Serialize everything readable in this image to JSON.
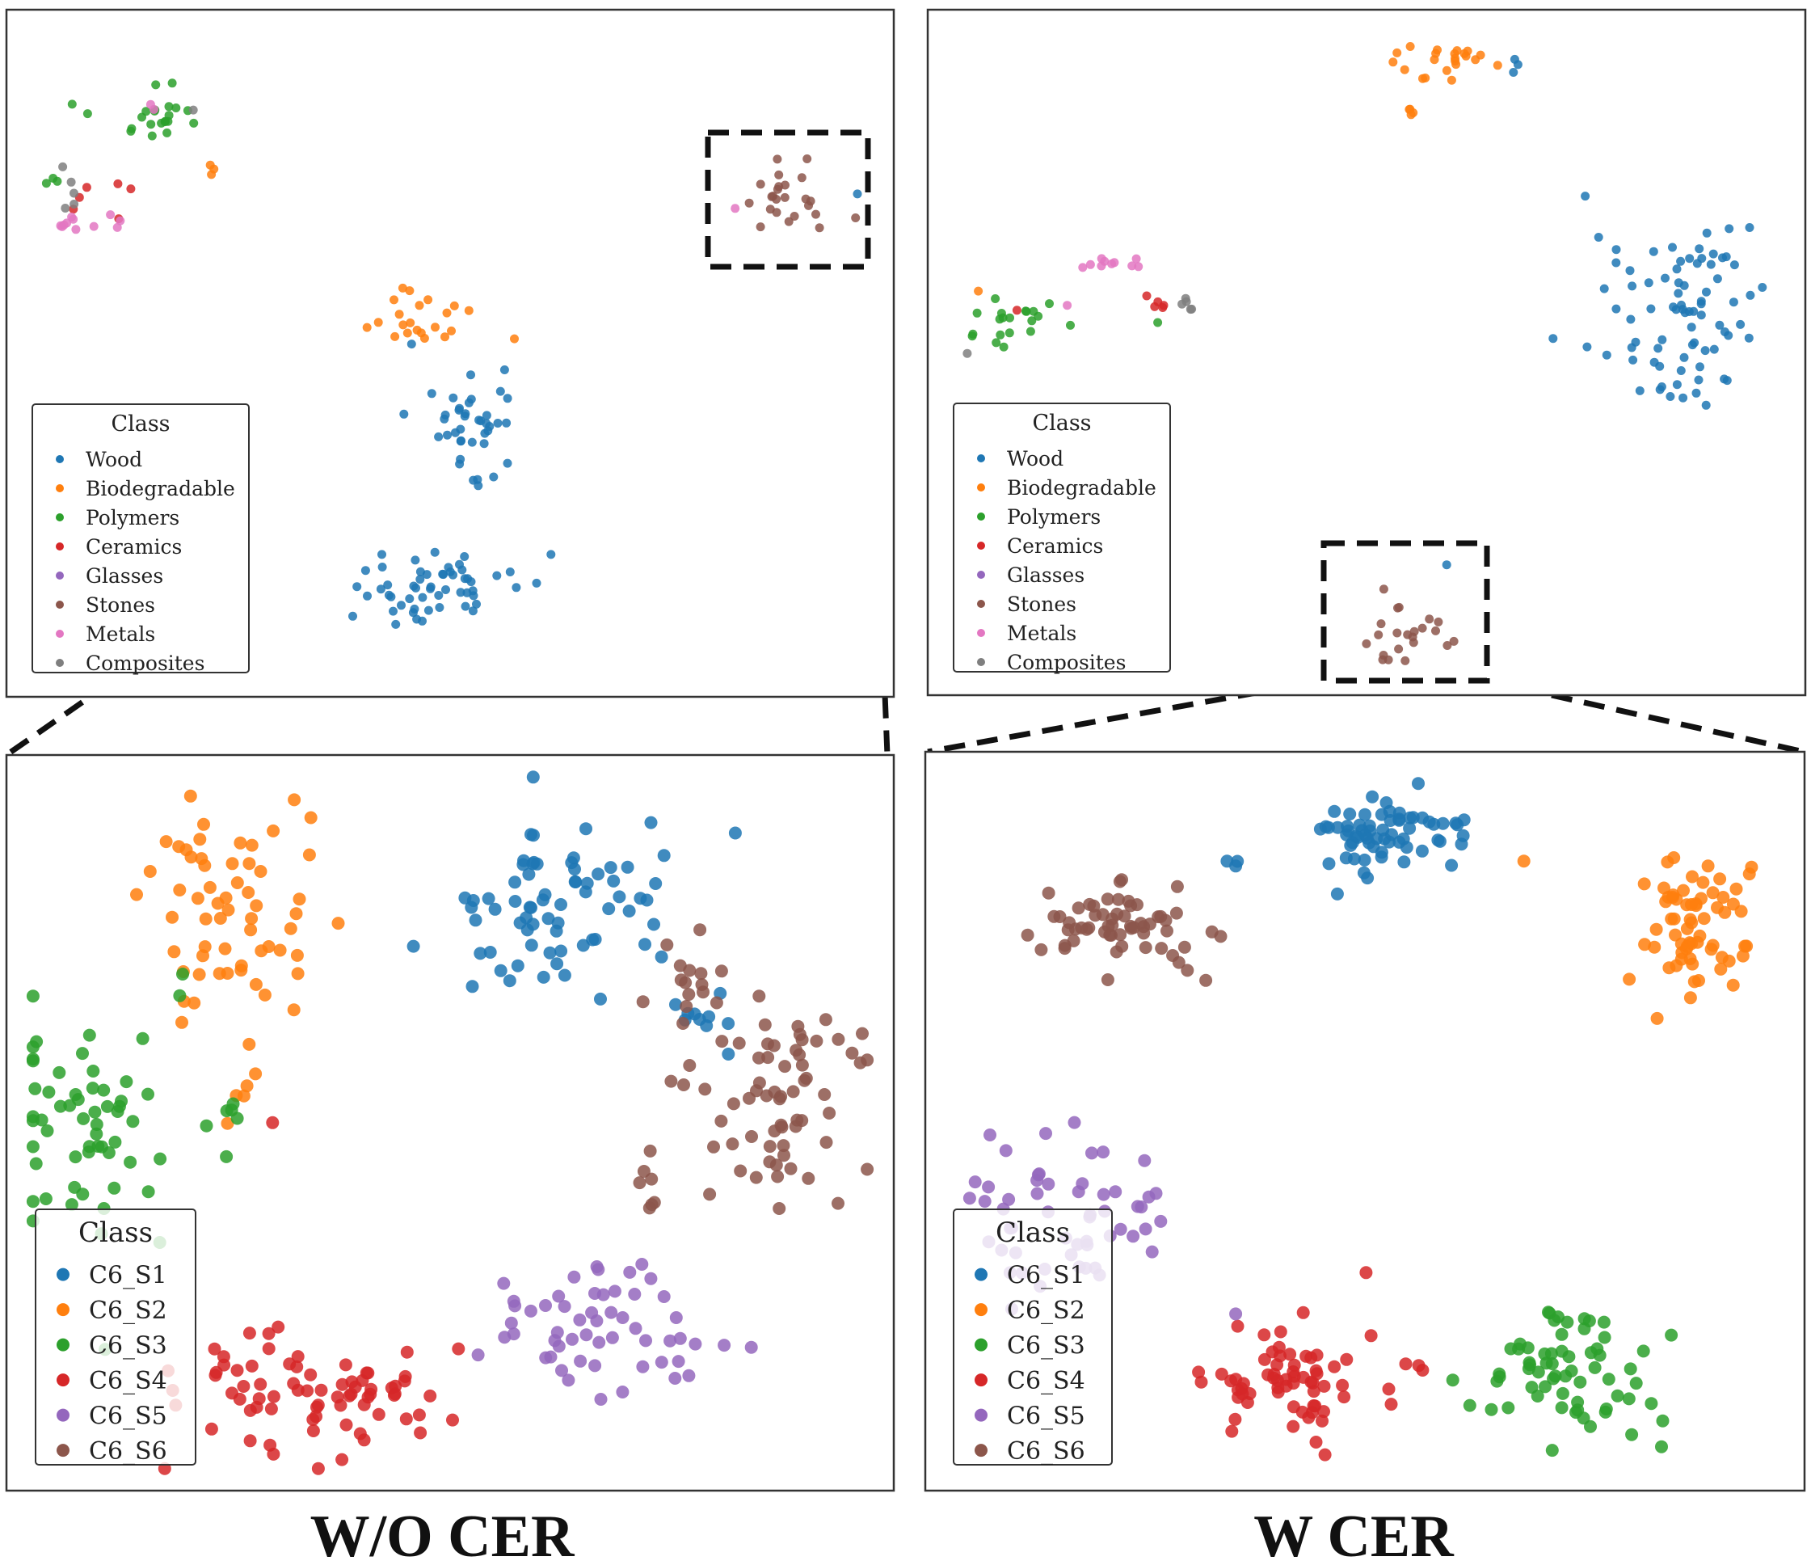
{
  "captions": {
    "left": "W/O  CER",
    "right": "W  CER"
  },
  "chart_data": [
    {
      "id": "top-left",
      "type": "scatter",
      "legend": {
        "title": "Class",
        "placement": "lower-left",
        "entries": [
          {
            "name": "Wood",
            "color": "#1f77b4"
          },
          {
            "name": "Biodegradable",
            "color": "#ff7f0e"
          },
          {
            "name": "Polymers",
            "color": "#2ca02c"
          },
          {
            "name": "Ceramics",
            "color": "#d62728"
          },
          {
            "name": "Glasses",
            "color": "#9467bd"
          },
          {
            "name": "Stones",
            "color": "#8c564b"
          },
          {
            "name": "Metals",
            "color": "#e377c2"
          },
          {
            "name": "Composites",
            "color": "#7f7f7f"
          }
        ]
      },
      "clusters": [
        {
          "name": "Polymers",
          "center": [
            0.16,
            0.84
          ],
          "spread": [
            0.05,
            0.05
          ],
          "n": 22,
          "seed": 11
        },
        {
          "name": "Polymers",
          "center": [
            0.06,
            0.75
          ],
          "spread": [
            0.01,
            0.01
          ],
          "n": 3,
          "seed": 12
        },
        {
          "name": "Ceramics",
          "center": [
            0.1,
            0.73
          ],
          "spread": [
            0.03,
            0.05
          ],
          "n": 6,
          "seed": 13
        },
        {
          "name": "Metals",
          "center": [
            0.1,
            0.69
          ],
          "spread": [
            0.04,
            0.015
          ],
          "n": 11,
          "seed": 14
        },
        {
          "name": "Metals",
          "center": [
            0.16,
            0.86
          ],
          "spread": [
            0.01,
            0.01
          ],
          "n": 2,
          "seed": 15
        },
        {
          "name": "Composites",
          "center": [
            0.07,
            0.74
          ],
          "spread": [
            0.01,
            0.03
          ],
          "n": 5,
          "seed": 16
        },
        {
          "name": "Composites",
          "center": [
            0.21,
            0.86
          ],
          "spread": [
            0.005,
            0.005
          ],
          "n": 1,
          "seed": 17
        },
        {
          "name": "Biodegradable",
          "center": [
            0.23,
            0.77
          ],
          "spread": [
            0.008,
            0.008
          ],
          "n": 3,
          "seed": 18
        },
        {
          "name": "Stones",
          "center": [
            0.88,
            0.73
          ],
          "spread": [
            0.06,
            0.04
          ],
          "n": 24,
          "seed": 19
        },
        {
          "name": "Metals",
          "center": [
            0.82,
            0.71
          ],
          "spread": [
            0.004,
            0.004
          ],
          "n": 1,
          "seed": 20
        },
        {
          "name": "Wood",
          "center": [
            0.96,
            0.73
          ],
          "spread": [
            0.004,
            0.004
          ],
          "n": 1,
          "seed": 21
        },
        {
          "name": "Biodegradable",
          "center": [
            0.46,
            0.55
          ],
          "spread": [
            0.06,
            0.03
          ],
          "n": 22,
          "seed": 22
        },
        {
          "name": "Wood",
          "center": [
            0.52,
            0.4
          ],
          "spread": [
            0.04,
            0.07
          ],
          "n": 40,
          "seed": 23
        },
        {
          "name": "Wood",
          "center": [
            0.48,
            0.16
          ],
          "spread": [
            0.09,
            0.05
          ],
          "n": 55,
          "seed": 24
        }
      ]
    },
    {
      "id": "top-right",
      "type": "scatter",
      "legend": {
        "title": "Class",
        "placement": "lower-left",
        "entries": [
          {
            "name": "Wood",
            "color": "#1f77b4"
          },
          {
            "name": "Biodegradable",
            "color": "#ff7f0e"
          },
          {
            "name": "Polymers",
            "color": "#2ca02c"
          },
          {
            "name": "Ceramics",
            "color": "#d62728"
          },
          {
            "name": "Glasses",
            "color": "#9467bd"
          },
          {
            "name": "Stones",
            "color": "#8c564b"
          },
          {
            "name": "Metals",
            "color": "#e377c2"
          },
          {
            "name": "Composites",
            "color": "#7f7f7f"
          }
        ]
      },
      "clusters": [
        {
          "name": "Biodegradable",
          "center": [
            0.6,
            0.93
          ],
          "spread": [
            0.05,
            0.02
          ],
          "n": 22,
          "seed": 31
        },
        {
          "name": "Biodegradable",
          "center": [
            0.55,
            0.85
          ],
          "spread": [
            0.006,
            0.006
          ],
          "n": 4,
          "seed": 32
        },
        {
          "name": "Wood",
          "center": [
            0.67,
            0.91
          ],
          "spread": [
            0.01,
            0.02
          ],
          "n": 3,
          "seed": 33
        },
        {
          "name": "Wood",
          "center": [
            0.86,
            0.55
          ],
          "spread": [
            0.08,
            0.13
          ],
          "n": 80,
          "seed": 34
        },
        {
          "name": "Polymers",
          "center": [
            0.09,
            0.55
          ],
          "spread": [
            0.04,
            0.04
          ],
          "n": 20,
          "seed": 35
        },
        {
          "name": "Biodegradable",
          "center": [
            0.05,
            0.59
          ],
          "spread": [
            0.004,
            0.004
          ],
          "n": 1,
          "seed": 36
        },
        {
          "name": "Composites",
          "center": [
            0.05,
            0.5
          ],
          "spread": [
            0.004,
            0.004
          ],
          "n": 1,
          "seed": 37
        },
        {
          "name": "Metals",
          "center": [
            0.22,
            0.63
          ],
          "spread": [
            0.025,
            0.01
          ],
          "n": 10,
          "seed": 38
        },
        {
          "name": "Metals",
          "center": [
            0.16,
            0.57
          ],
          "spread": [
            0.003,
            0.003
          ],
          "n": 1,
          "seed": 39
        },
        {
          "name": "Ceramics",
          "center": [
            0.27,
            0.57
          ],
          "spread": [
            0.015,
            0.015
          ],
          "n": 5,
          "seed": 40
        },
        {
          "name": "Ceramics",
          "center": [
            0.1,
            0.56
          ],
          "spread": [
            0.004,
            0.004
          ],
          "n": 1,
          "seed": 41
        },
        {
          "name": "Composites",
          "center": [
            0.3,
            0.57
          ],
          "spread": [
            0.01,
            0.01
          ],
          "n": 5,
          "seed": 42
        },
        {
          "name": "Polymers",
          "center": [
            0.26,
            0.54
          ],
          "spread": [
            0.003,
            0.003
          ],
          "n": 1,
          "seed": 43
        },
        {
          "name": "Stones",
          "center": [
            0.55,
            0.09
          ],
          "spread": [
            0.05,
            0.05
          ],
          "n": 22,
          "seed": 44
        },
        {
          "name": "Wood",
          "center": [
            0.59,
            0.19
          ],
          "spread": [
            0.003,
            0.003
          ],
          "n": 1,
          "seed": 45
        }
      ]
    },
    {
      "id": "bottom-left",
      "type": "scatter",
      "legend": {
        "title": "Class",
        "placement": "lower-left",
        "entries": [
          {
            "name": "C6_S1",
            "color": "#1f77b4"
          },
          {
            "name": "C6_S2",
            "color": "#ff7f0e"
          },
          {
            "name": "C6_S3",
            "color": "#2ca02c"
          },
          {
            "name": "C6_S4",
            "color": "#d62728"
          },
          {
            "name": "C6_S5",
            "color": "#9467bd"
          },
          {
            "name": "C6_S6",
            "color": "#8c564b"
          }
        ]
      },
      "clusters": [
        {
          "name": "C6_S2",
          "center": [
            0.25,
            0.79
          ],
          "spread": [
            0.08,
            0.12
          ],
          "n": 60,
          "seed": 51
        },
        {
          "name": "C6_S2",
          "center": [
            0.26,
            0.54
          ],
          "spread": [
            0.02,
            0.03
          ],
          "n": 5,
          "seed": 52
        },
        {
          "name": "C6_S3",
          "center": [
            0.1,
            0.49
          ],
          "spread": [
            0.09,
            0.14
          ],
          "n": 60,
          "seed": 53
        },
        {
          "name": "C6_S3",
          "center": [
            0.25,
            0.52
          ],
          "spread": [
            0.02,
            0.02
          ],
          "n": 4,
          "seed": 54
        },
        {
          "name": "C6_S1",
          "center": [
            0.63,
            0.8
          ],
          "spread": [
            0.12,
            0.11
          ],
          "n": 70,
          "seed": 55
        },
        {
          "name": "C6_S1",
          "center": [
            0.78,
            0.64
          ],
          "spread": [
            0.04,
            0.04
          ],
          "n": 10,
          "seed": 56
        },
        {
          "name": "C6_S6",
          "center": [
            0.88,
            0.52
          ],
          "spread": [
            0.08,
            0.12
          ],
          "n": 65,
          "seed": 57
        },
        {
          "name": "C6_S6",
          "center": [
            0.78,
            0.68
          ],
          "spread": [
            0.03,
            0.06
          ],
          "n": 15,
          "seed": 58
        },
        {
          "name": "C6_S6",
          "center": [
            0.72,
            0.41
          ],
          "spread": [
            0.02,
            0.02
          ],
          "n": 6,
          "seed": 59
        },
        {
          "name": "C6_S5",
          "center": [
            0.68,
            0.21
          ],
          "spread": [
            0.13,
            0.08
          ],
          "n": 55,
          "seed": 60
        },
        {
          "name": "C6_S4",
          "center": [
            0.35,
            0.13
          ],
          "spread": [
            0.15,
            0.07
          ],
          "n": 75,
          "seed": 61
        },
        {
          "name": "C6_S4",
          "center": [
            0.3,
            0.5
          ],
          "spread": [
            0.003,
            0.003
          ],
          "n": 1,
          "seed": 62
        }
      ]
    },
    {
      "id": "bottom-right",
      "type": "scatter",
      "legend": {
        "title": "Class",
        "placement": "lower-left",
        "entries": [
          {
            "name": "C6_S1",
            "color": "#1f77b4"
          },
          {
            "name": "C6_S2",
            "color": "#ff7f0e"
          },
          {
            "name": "C6_S3",
            "color": "#2ca02c"
          },
          {
            "name": "C6_S4",
            "color": "#d62728"
          },
          {
            "name": "C6_S5",
            "color": "#9467bd"
          },
          {
            "name": "C6_S6",
            "color": "#8c564b"
          }
        ]
      },
      "clusters": [
        {
          "name": "C6_S6",
          "center": [
            0.22,
            0.77
          ],
          "spread": [
            0.08,
            0.06
          ],
          "n": 60,
          "seed": 71
        },
        {
          "name": "C6_S1",
          "center": [
            0.52,
            0.89
          ],
          "spread": [
            0.08,
            0.05
          ],
          "n": 65,
          "seed": 72
        },
        {
          "name": "C6_S1",
          "center": [
            0.35,
            0.85
          ],
          "spread": [
            0.01,
            0.005
          ],
          "n": 3,
          "seed": 73
        },
        {
          "name": "C6_S2",
          "center": [
            0.87,
            0.76
          ],
          "spread": [
            0.06,
            0.07
          ],
          "n": 65,
          "seed": 74
        },
        {
          "name": "C6_S2",
          "center": [
            0.68,
            0.85
          ],
          "spread": [
            0.003,
            0.003
          ],
          "n": 1,
          "seed": 75
        },
        {
          "name": "C6_S5",
          "center": [
            0.15,
            0.37
          ],
          "spread": [
            0.09,
            0.09
          ],
          "n": 55,
          "seed": 76
        },
        {
          "name": "C6_S4",
          "center": [
            0.41,
            0.15
          ],
          "spread": [
            0.08,
            0.07
          ],
          "n": 65,
          "seed": 77
        },
        {
          "name": "C6_S4",
          "center": [
            0.55,
            0.17
          ],
          "spread": [
            0.03,
            0.01
          ],
          "n": 3,
          "seed": 78
        },
        {
          "name": "C6_S3",
          "center": [
            0.73,
            0.16
          ],
          "spread": [
            0.09,
            0.07
          ],
          "n": 65,
          "seed": 79
        },
        {
          "name": "C6_S5",
          "center": [
            0.35,
            0.24
          ],
          "spread": [
            0.003,
            0.003
          ],
          "n": 1,
          "seed": 80
        }
      ]
    }
  ]
}
